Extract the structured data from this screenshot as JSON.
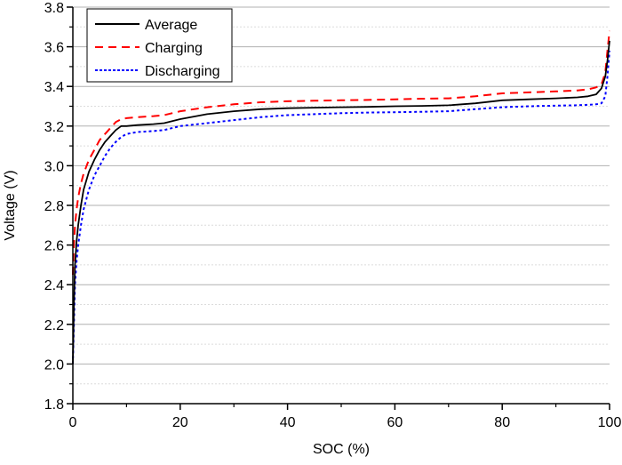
{
  "chart_data": {
    "type": "line",
    "title": "",
    "xlabel": "SOC (%)",
    "ylabel": "Voltage (V)",
    "xlim": [
      0,
      100
    ],
    "ylim": [
      1.8,
      3.8
    ],
    "x_ticks": [
      0,
      20,
      40,
      60,
      80,
      100
    ],
    "x_tick_labels": [
      "0",
      "20",
      "40",
      "60",
      "80",
      "100"
    ],
    "x_minor_ticks": [
      10,
      30,
      50,
      70,
      90
    ],
    "y_ticks": [
      1.8,
      2.0,
      2.2,
      2.4,
      2.6,
      2.8,
      3.0,
      3.2,
      3.4,
      3.6,
      3.8
    ],
    "y_tick_labels": [
      "1.8",
      "2.0",
      "2.2",
      "2.4",
      "2.6",
      "2.8",
      "3.0",
      "3.2",
      "3.4",
      "3.6",
      "3.8"
    ],
    "y_minor_ticks": [
      1.9,
      2.1,
      2.3,
      2.5,
      2.7,
      2.9,
      3.1,
      3.3,
      3.5,
      3.7
    ],
    "grid": true,
    "legend_position": "top-left",
    "series": [
      {
        "name": "Average",
        "color": "#000000",
        "style": "solid",
        "x": [
          0,
          0.2,
          0.4,
          0.7,
          1,
          1.5,
          2,
          3,
          4,
          5,
          6,
          7,
          8,
          9,
          10,
          12,
          15,
          17,
          20,
          25,
          30,
          35,
          40,
          45,
          50,
          55,
          60,
          65,
          70,
          75,
          80,
          85,
          90,
          94,
          96,
          97.5,
          98.5,
          99.2,
          99.6,
          100
        ],
        "y": [
          2.0,
          2.3,
          2.5,
          2.62,
          2.7,
          2.8,
          2.88,
          2.97,
          3.03,
          3.08,
          3.12,
          3.15,
          3.18,
          3.2,
          3.2,
          3.205,
          3.21,
          3.215,
          3.235,
          3.26,
          3.275,
          3.285,
          3.29,
          3.293,
          3.295,
          3.297,
          3.3,
          3.302,
          3.305,
          3.315,
          3.33,
          3.335,
          3.34,
          3.345,
          3.35,
          3.36,
          3.39,
          3.45,
          3.53,
          3.63
        ]
      },
      {
        "name": "Charging",
        "color": "#ff0000",
        "style": "dashed",
        "x": [
          0,
          0.2,
          0.4,
          0.7,
          1,
          1.5,
          2,
          3,
          4,
          5,
          6,
          7,
          8,
          9,
          10,
          12,
          15,
          17,
          20,
          25,
          30,
          35,
          40,
          45,
          50,
          55,
          60,
          65,
          70,
          75,
          80,
          85,
          90,
          94,
          96,
          97.5,
          98.5,
          99.2,
          99.6,
          100
        ],
        "y": [
          2.45,
          2.6,
          2.7,
          2.78,
          2.84,
          2.91,
          2.96,
          3.03,
          3.08,
          3.13,
          3.16,
          3.19,
          3.22,
          3.235,
          3.24,
          3.245,
          3.25,
          3.255,
          3.275,
          3.295,
          3.31,
          3.32,
          3.325,
          3.328,
          3.33,
          3.332,
          3.335,
          3.338,
          3.34,
          3.35,
          3.365,
          3.37,
          3.375,
          3.38,
          3.385,
          3.395,
          3.41,
          3.47,
          3.58,
          3.68
        ]
      },
      {
        "name": "Discharging",
        "color": "#0000ff",
        "style": "dotted",
        "x": [
          0,
          0.2,
          0.4,
          0.7,
          1,
          1.5,
          2,
          3,
          4,
          5,
          6,
          7,
          8,
          9,
          10,
          12,
          15,
          17,
          20,
          25,
          30,
          35,
          40,
          45,
          50,
          55,
          60,
          65,
          70,
          75,
          80,
          85,
          90,
          94,
          96,
          97.5,
          98.5,
          99.2,
          99.6,
          100
        ],
        "y": [
          2.0,
          2.2,
          2.4,
          2.52,
          2.6,
          2.7,
          2.78,
          2.88,
          2.95,
          3.0,
          3.05,
          3.09,
          3.12,
          3.145,
          3.16,
          3.17,
          3.175,
          3.18,
          3.2,
          3.215,
          3.23,
          3.245,
          3.255,
          3.26,
          3.265,
          3.268,
          3.27,
          3.272,
          3.275,
          3.285,
          3.295,
          3.3,
          3.303,
          3.305,
          3.307,
          3.31,
          3.315,
          3.35,
          3.45,
          3.58
        ]
      }
    ]
  }
}
